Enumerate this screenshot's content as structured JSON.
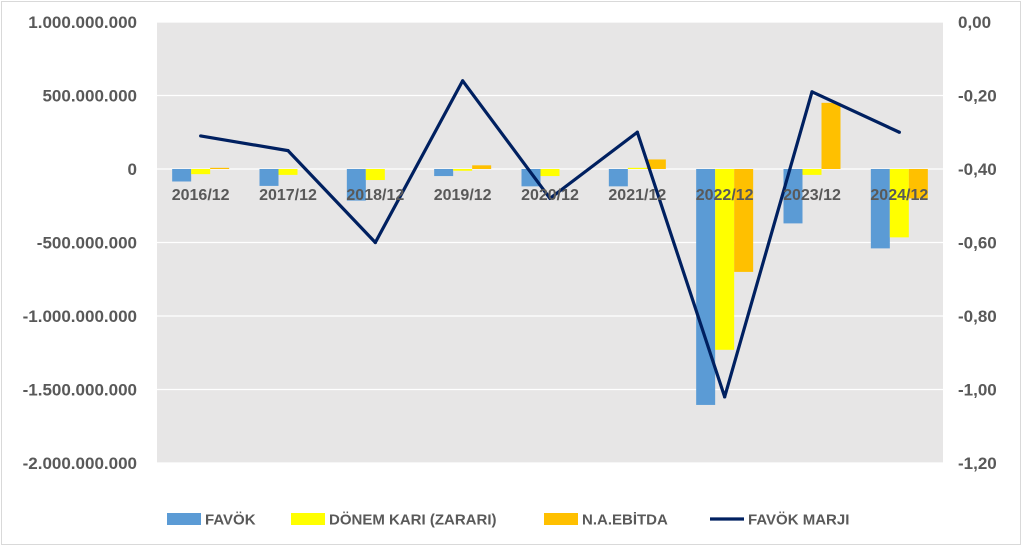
{
  "chart_data": {
    "type": "bar",
    "categories": [
      "2016/12",
      "2017/12",
      "2018/12",
      "2019/12",
      "2020/12",
      "2021/12",
      "2022/12",
      "2023/12",
      "2024/12"
    ],
    "series": [
      {
        "name": "FAVÖK",
        "type": "bar",
        "axis": "left",
        "color": "#5b9bd5",
        "values": [
          -85000000,
          -115000000,
          -215000000,
          -48000000,
          -118000000,
          -118000000,
          -1605000000,
          -370000000,
          -540000000
        ]
      },
      {
        "name": "DÖNEM KARI (ZARARI)",
        "type": "bar",
        "axis": "left",
        "color": "#ffff00",
        "values": [
          -35000000,
          -40000000,
          -75000000,
          -12000000,
          -48000000,
          8000000,
          -1230000000,
          -40000000,
          -465000000
        ]
      },
      {
        "name": "N.A.EBİTDA",
        "type": "bar",
        "axis": "left",
        "color": "#ffc000",
        "values": [
          8000000,
          0,
          0,
          25000000,
          0,
          65000000,
          -700000000,
          450000000,
          -200000000
        ]
      },
      {
        "name": "FAVÖK MARJI",
        "type": "line",
        "axis": "right",
        "color": "#002060",
        "values": [
          -0.31,
          -0.35,
          -0.6,
          -0.16,
          -0.48,
          -0.3,
          -1.02,
          -0.19,
          -0.3
        ]
      }
    ],
    "y_left": {
      "min": -2000000000,
      "max": 1000000000,
      "ticks": [
        1000000000,
        500000000,
        0,
        -500000000,
        -1000000000,
        -1500000000,
        -2000000000
      ],
      "tick_labels": [
        "1.000.000.000",
        "500.000.000",
        "0",
        "-500.000.000",
        "-1.000.000.000",
        "-1.500.000.000",
        "-2.000.000.000"
      ]
    },
    "y_right": {
      "min": -1.2,
      "max": 0,
      "ticks": [
        0,
        -0.2,
        -0.4,
        -0.6,
        -0.8,
        -1.0,
        -1.2
      ],
      "tick_labels": [
        "0,00",
        "-0,20",
        "-0,40",
        "-0,60",
        "-0,80",
        "-1,00",
        "-1,20"
      ]
    },
    "grid": true,
    "legend_position": "bottom",
    "plot_background": "#e7e6e6",
    "title": "",
    "xlabel": "",
    "ylabel": ""
  }
}
